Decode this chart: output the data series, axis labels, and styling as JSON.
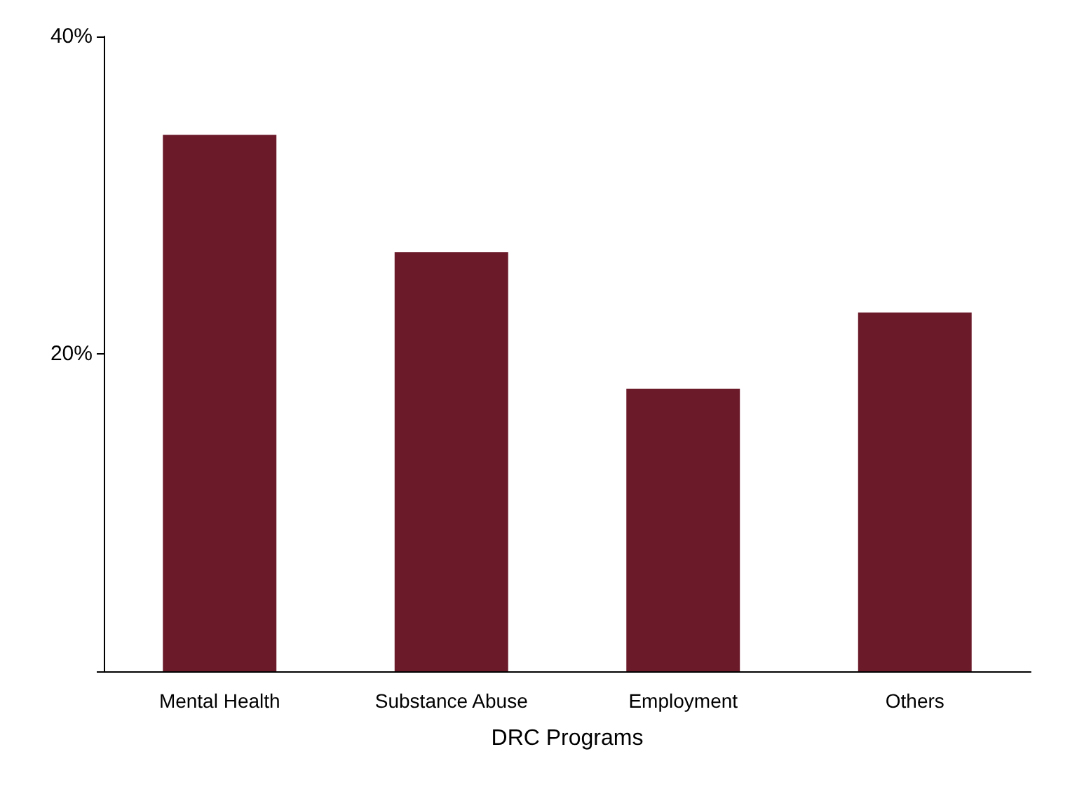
{
  "chart_data": {
    "type": "bar",
    "xlabel": "DRC Programs",
    "categories": [
      "Mental Health",
      "Substance Abuse",
      "Employment",
      "Others"
    ],
    "values": [
      33.8,
      26.4,
      17.8,
      22.6
    ],
    "color": "#6b1a2a",
    "ylim": [
      0,
      40
    ],
    "yticks": [
      {
        "value": 0,
        "label": null
      },
      {
        "value": 20,
        "label": "20%"
      },
      {
        "value": 40,
        "label": "40%"
      }
    ],
    "grid": false
  }
}
